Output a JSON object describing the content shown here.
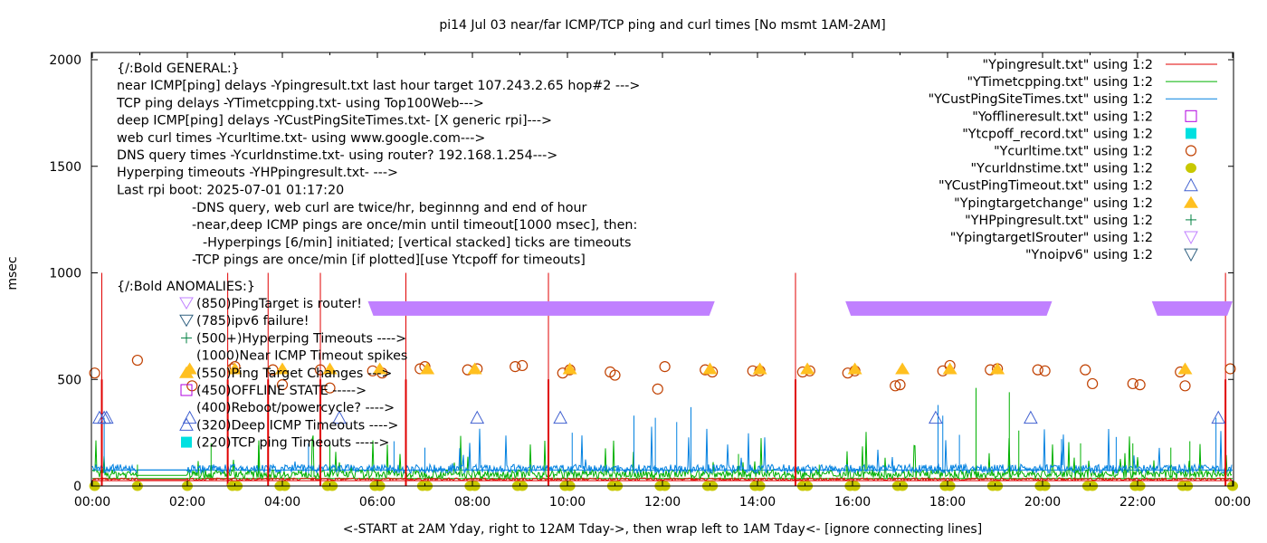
{
  "chart_data": {
    "type": "line",
    "title": "pi14 Jul 03  near/far ICMP/TCP ping and curl times [No msmt 1AM-2AM]",
    "xlabel": "<-START at 2AM Yday, right to 12AM Tday->, then wrap left to 1AM Tday<- [ignore connecting lines]",
    "ylabel": "msec",
    "xlim": [
      0,
      24
    ],
    "ylim": [
      0,
      2000
    ],
    "x_unit": "hours",
    "x_ticks": [
      "00:00",
      "02:00",
      "04:00",
      "06:00",
      "08:00",
      "10:00",
      "12:00",
      "14:00",
      "16:00",
      "18:00",
      "20:00",
      "22:00",
      "00:00"
    ],
    "y_ticks": [
      "0",
      "500",
      "1000",
      "1500",
      "2000"
    ],
    "grid": false,
    "legend_position": "top-right",
    "legend": [
      {
        "label": "\"Ypingresult.txt\" using 1:2",
        "style": "line",
        "color": "#e00000"
      },
      {
        "label": "\"YTimetcpping.txt\" using 1:2",
        "style": "line",
        "color": "#00b000"
      },
      {
        "label": "\"YCustPingSiteTimes.txt\" using 1:2",
        "style": "line",
        "color": "#0080e0"
      },
      {
        "label": "\"Yofflineresult.txt\" using 1:2",
        "style": "open-square",
        "color": "#b000e0"
      },
      {
        "label": "\"Ytcpoff_record.txt\" using 1:2",
        "style": "filled-square",
        "color": "#00e0e0"
      },
      {
        "label": "\"Ycurltime.txt\" using 1:2",
        "style": "open-circle",
        "color": "#c04000"
      },
      {
        "label": "\"Ycurldnstime.txt\" using 1:2",
        "style": "filled-circle",
        "color": "#c8c800"
      },
      {
        "label": "\"YCustPingTimeout.txt\" using 1:2",
        "style": "open-triangle",
        "color": "#4060d0"
      },
      {
        "label": "\"Ypingtargetchange\" using 1:2",
        "style": "filled-triangle",
        "color": "#ffc020"
      },
      {
        "label": "\"YHPpingresult.txt\" using 1:2",
        "style": "plus",
        "color": "#008040"
      },
      {
        "label": "\"YpingtargetISrouter\" using 1:2",
        "style": "open-down-triangle",
        "color": "#c080ff"
      },
      {
        "label": "\"Ynoipv6\" using 1:2",
        "style": "open-down-triangle",
        "color": "#306080"
      }
    ],
    "annotations_general": [
      "{/:Bold GENERAL:}",
      "near ICMP[ping] delays -Ypingresult.txt last hour target 107.243.2.65 hop#2 --->",
      "TCP ping delays -YTimetcpping.txt- using Top100Web--->",
      "deep ICMP[ping] delays -YCustPingSiteTimes.txt- [X generic rpi]--->",
      "web curl times -Ycurltime.txt- using www.google.com--->",
      "DNS query times -Ycurldnstime.txt- using router? 192.168.1.254--->",
      "Hyperping timeouts -YHPpingresult.txt- --->",
      "Last rpi boot: 2025-07-01 01:17:20"
    ],
    "annotations_notes": [
      "-DNS query, web curl are twice/hr, beginnng and end of hour",
      "-near,deep ICMP pings are once/min until timeout[1000 msec], then:",
      "-Hyperpings [6/min] initiated; [vertical stacked] ticks are timeouts",
      "-TCP pings are once/min [if plotted][use Ytcpoff for timeouts]"
    ],
    "annotations_anomalies_title": "{/:Bold ANOMALIES:}",
    "annotations_anomalies": [
      {
        "text": "(850)PingTarget is router!",
        "marker": "open-down-triangle",
        "color": "#c080ff"
      },
      {
        "text": "(785)ipv6 failure!",
        "marker": "open-down-triangle",
        "color": "#306080"
      },
      {
        "text": "(500+)Hyperping Timeouts ---->",
        "marker": "plus",
        "color": "#008040"
      },
      {
        "text": "(1000)Near ICMP Timeout spikes",
        "marker": "none",
        "color": ""
      },
      {
        "text": "(550)Ping Target Changes --->",
        "marker": "filled-triangle",
        "color": "#ffc020"
      },
      {
        "text": "(450)OFFLINE STATE ----->",
        "marker": "open-square",
        "color": "#b000e0"
      },
      {
        "text": "(400)Reboot/powercycle? ---->",
        "marker": "none",
        "color": ""
      },
      {
        "text": "(320)Deep ICMP Timeouts ---->",
        "marker": "open-triangle",
        "color": "#4060d0"
      },
      {
        "text": "(220)TCP ping Timeouts ----->",
        "marker": "filled-square",
        "color": "#00e0e0"
      }
    ],
    "series": [
      {
        "name": "Ypingresult.txt",
        "baseline": 30,
        "spikes_x": [
          0.2,
          2.85,
          3.7,
          4.8,
          6.6,
          9.6,
          14.8,
          23.85
        ],
        "spikes_y": [
          1000,
          1000,
          1000,
          1000,
          1000,
          1000,
          1000,
          1000
        ]
      },
      {
        "name": "YTimetcpping.txt",
        "baseline": 50
      },
      {
        "name": "YCustPingSiteTimes.txt",
        "baseline": 75
      },
      {
        "name": "Ycurltime.txt",
        "x": [
          0.05,
          0.95,
          2.1,
          2.95,
          3.0,
          3.8,
          4.0,
          4.8,
          5.0,
          5.9,
          6.1,
          6.9,
          7.0,
          7.9,
          8.1,
          8.9,
          9.05,
          9.9,
          10.05,
          10.9,
          11.0,
          11.9,
          12.05,
          12.9,
          13.05,
          13.9,
          14.05,
          14.95,
          15.1,
          15.9,
          16.05,
          16.9,
          17.0,
          17.9,
          18.05,
          18.9,
          19.05,
          19.9,
          20.05,
          20.9,
          21.05,
          21.9,
          22.05,
          22.9,
          23.0,
          23.95
        ],
        "y": [
          530,
          590,
          470,
          550,
          560,
          545,
          475,
          545,
          460,
          540,
          530,
          550,
          560,
          545,
          550,
          560,
          565,
          530,
          545,
          535,
          520,
          455,
          560,
          545,
          535,
          540,
          540,
          535,
          540,
          530,
          540,
          470,
          475,
          540,
          565,
          545,
          550,
          545,
          540,
          545,
          480,
          480,
          475,
          535,
          470,
          550
        ]
      },
      {
        "name": "Ycurldnstime.txt",
        "y_value": 0,
        "x": [
          0.05,
          0.95,
          2.0,
          2.95,
          3.05,
          3.95,
          4.05,
          4.95,
          5.05,
          5.95,
          6.05,
          6.95,
          7.05,
          7.95,
          8.05,
          8.95,
          9.05,
          9.95,
          10.05,
          10.95,
          11.05,
          11.95,
          12.05,
          12.95,
          13.05,
          13.95,
          14.05,
          14.95,
          15.05,
          15.95,
          16.05,
          16.95,
          17.05,
          17.95,
          18.05,
          18.95,
          19.05,
          19.95,
          20.05,
          20.95,
          21.05,
          21.95,
          22.05,
          22.95,
          23.05,
          24.0
        ]
      },
      {
        "name": "YCustPingTimeout.txt",
        "y_value": 320,
        "x": [
          0.15,
          0.25,
          0.3,
          2.05,
          5.2,
          8.1,
          9.85,
          17.75,
          19.75,
          23.7
        ]
      },
      {
        "name": "Ypingtargetchange",
        "y_value": 550,
        "x": [
          2.05,
          3.0,
          4.0,
          5.0,
          6.05,
          7.05,
          8.05,
          10.05,
          13.0,
          14.05,
          15.05,
          16.05,
          17.05,
          18.05,
          19.05,
          23.0
        ]
      },
      {
        "name": "YpingtargetISrouter",
        "y_value": 850,
        "ranges": [
          [
            5.8,
            13.1
          ],
          [
            15.85,
            20.2
          ],
          [
            22.3,
            24.0
          ]
        ]
      }
    ]
  }
}
